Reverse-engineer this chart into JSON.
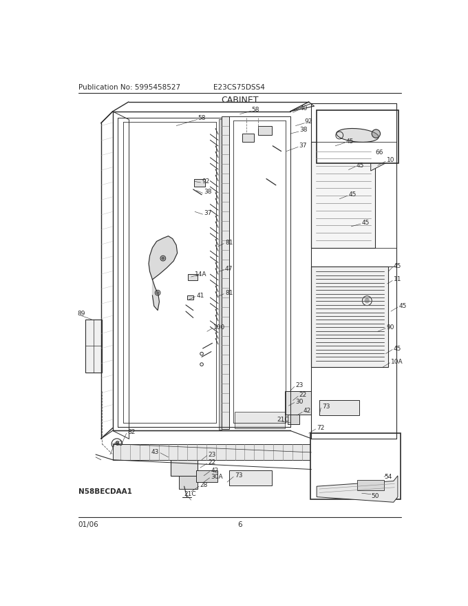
{
  "title": "CABINET",
  "pub_no": "Publication No: 5995458527",
  "model": "E23CS75DSS4",
  "date": "01/06",
  "page": "6",
  "part_code": "N58BECDAA1",
  "bg_color": "#ffffff",
  "line_color": "#2a2a2a",
  "label_fontsize": 6.5,
  "title_fontsize": 9,
  "header_fontsize": 7
}
